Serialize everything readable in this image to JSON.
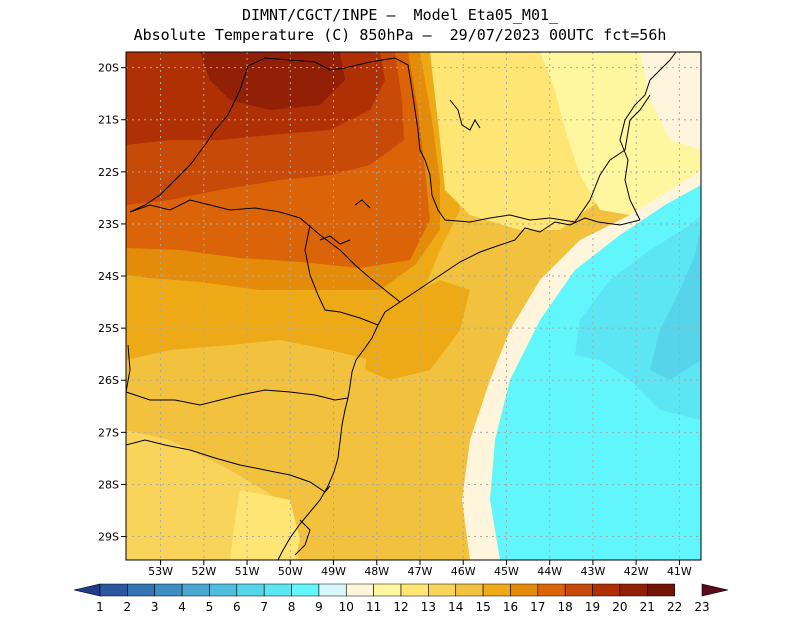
{
  "title": {
    "line1": "DIMNT/CGCT/INPE –  Model Eta05_M01_",
    "line2": "Absolute Temperature (C) 850hPa –  29/07/2023 00UTC fct=56h"
  },
  "lat_ticks": [
    "20S",
    "21S",
    "22S",
    "23S",
    "24S",
    "25S",
    "26S",
    "27S",
    "28S",
    "29S"
  ],
  "lon_ticks": [
    "53W",
    "52W",
    "51W",
    "50W",
    "49W",
    "48W",
    "47W",
    "46W",
    "45W",
    "44W",
    "43W",
    "42W",
    "41W"
  ],
  "colorbar": {
    "labels": [
      "1",
      "2",
      "3",
      "4",
      "5",
      "6",
      "7",
      "8",
      "9",
      "10",
      "11",
      "12",
      "13",
      "14",
      "15",
      "16",
      "17",
      "18",
      "19",
      "20",
      "21",
      "22",
      "23"
    ],
    "colors": [
      "#1e3c8c",
      "#2a57a0",
      "#3474b4",
      "#3e8dc4",
      "#48a6d0",
      "#4fbede",
      "#56d4ea",
      "#5ce6f4",
      "#60f6fc",
      "#d6f8fc",
      "#fff5dc",
      "#fff6a0",
      "#ffe574",
      "#f8d45a",
      "#f2c23e",
      "#eeaa16",
      "#e48c0a",
      "#dc6408",
      "#c84a08",
      "#b03006",
      "#922006",
      "#741406",
      "#5c0a1c"
    ]
  },
  "map": {
    "extent": {
      "lon_min": -53.8,
      "lon_max": -40.5,
      "lat_min": -29.45,
      "lat_max": -19.7
    },
    "fill_colors": {
      "darkest_red": "#922006",
      "dark_red": "#b03006",
      "red_orange": "#c84a08",
      "orange_red": "#dc6408",
      "dark_orange": "#e48c0a",
      "orange": "#eeaa16",
      "gold": "#f2c23e",
      "yellow_gold": "#f8d45a",
      "yellow": "#ffe574",
      "pale_yellow": "#fff6a0",
      "cream": "#fff5dc",
      "cyan": "#60f6fc",
      "cyan_blue": "#5ce6f4",
      "light_blue": "#56d4ea"
    },
    "grid_color": "#a8a8a8",
    "border_color": "#000000"
  }
}
